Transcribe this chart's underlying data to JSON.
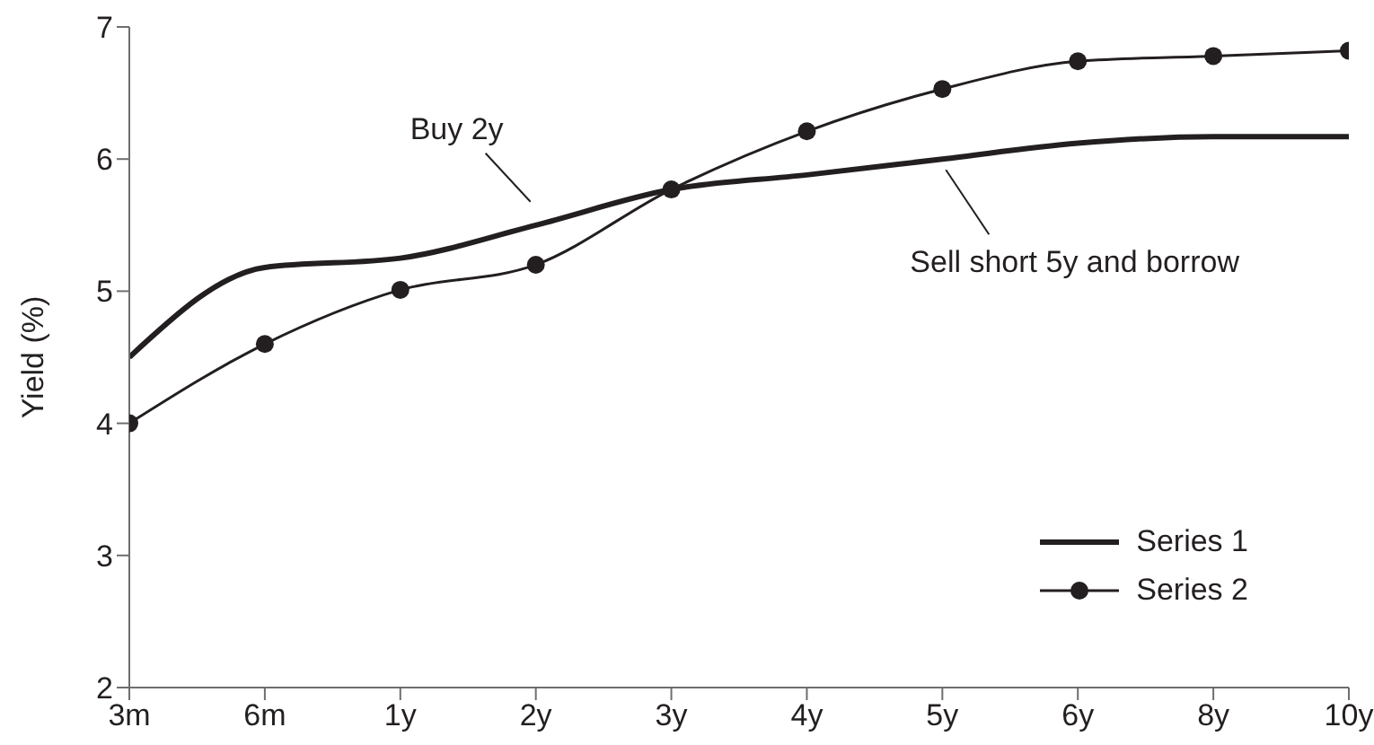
{
  "chart_data": {
    "type": "line",
    "ylabel": "Yield (%)",
    "categories": [
      "3m",
      "6m",
      "1y",
      "2y",
      "3y",
      "4y",
      "5y",
      "6y",
      "8y",
      "10y"
    ],
    "series": [
      {
        "name": "Series 1",
        "color": "#231f20",
        "marker": "none",
        "values": [
          4.5,
          5.18,
          5.25,
          5.5,
          5.77,
          5.88,
          6.0,
          6.12,
          6.17,
          6.17
        ]
      },
      {
        "name": "Series 2",
        "color": "#231f20",
        "marker": "circle",
        "values": [
          4.0,
          4.6,
          5.01,
          5.2,
          5.77,
          6.21,
          6.53,
          6.74,
          6.78,
          6.82
        ]
      }
    ],
    "ylim": [
      2,
      7
    ],
    "yticks": [
      2,
      3,
      4,
      5,
      6,
      7
    ],
    "grid": false,
    "legend": "bottom right",
    "annotations": [
      {
        "text": "Buy 2y",
        "x": "2y",
        "y": 5.5
      },
      {
        "text": "Sell short 5y and borrow",
        "x": "5y",
        "y": 6.0
      }
    ]
  }
}
